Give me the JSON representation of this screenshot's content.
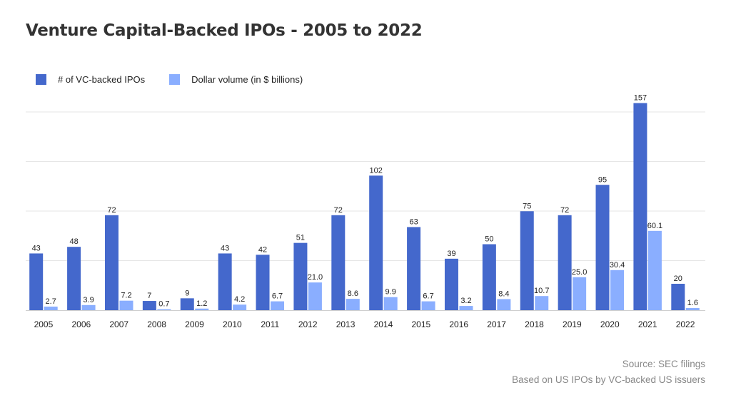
{
  "title": "Venture Capital-Backed IPOs - 2005 to 2022",
  "legend": {
    "placement": "top-left",
    "items": [
      {
        "label": "# of VC-backed IPOs",
        "color": "#4468cc"
      },
      {
        "label": "Dollar volume (in $ billions)",
        "color": "#8aaeff"
      }
    ]
  },
  "source": {
    "line1": "Source: SEC filings",
    "line2": "Based on US IPOs by VC-backed US issuers"
  },
  "chart_data": {
    "type": "bar",
    "title": "Venture Capital-Backed IPOs - 2005 to 2022",
    "categories": [
      "2005",
      "2006",
      "2007",
      "2008",
      "2009",
      "2010",
      "2011",
      "2012",
      "2013",
      "2014",
      "2015",
      "2016",
      "2017",
      "2018",
      "2019",
      "2020",
      "2021",
      "2022"
    ],
    "series": [
      {
        "name": "# of VC-backed IPOs",
        "color": "#4468cc",
        "values": [
          43,
          48,
          72,
          7,
          9,
          43,
          42,
          51,
          72,
          102,
          63,
          39,
          50,
          75,
          72,
          95,
          157,
          20
        ],
        "labels": [
          "43",
          "48",
          "72",
          "7",
          "9",
          "43",
          "42",
          "51",
          "72",
          "102",
          "63",
          "39",
          "50",
          "75",
          "72",
          "95",
          "157",
          "20"
        ]
      },
      {
        "name": "Dollar volume (in $ billions)",
        "color": "#8aaeff",
        "values": [
          2.7,
          3.9,
          7.2,
          0.7,
          1.2,
          4.2,
          6.7,
          21.0,
          8.6,
          9.9,
          6.7,
          3.2,
          8.4,
          10.7,
          25.0,
          30.4,
          60.1,
          1.6
        ],
        "labels": [
          "2.7",
          "3.9",
          "7.2",
          "0.7",
          "1.2",
          "4.2",
          "6.7",
          "21.0",
          "8.6",
          "9.9",
          "6.7",
          "3.2",
          "8.4",
          "10.7",
          "25.0",
          "30.4",
          "60.1",
          "1.6"
        ]
      }
    ],
    "grid": true,
    "xlabel": "",
    "ylabel": ""
  }
}
